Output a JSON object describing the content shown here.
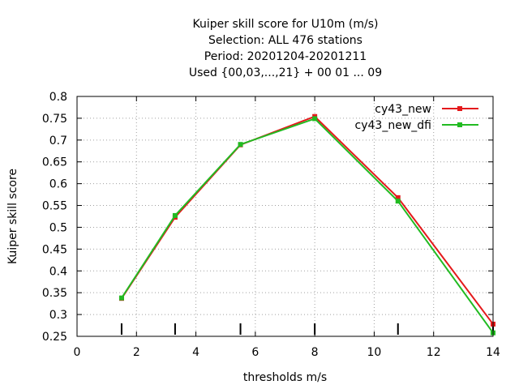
{
  "chart_data": {
    "type": "line",
    "title_lines": [
      "Kuiper skill score  for U10m (m/s)",
      "Selection: ALL    476 stations",
      "Period: 20201204-20201211",
      "Used {00,03,...,21} + 00 01 ... 09"
    ],
    "xlabel": "thresholds m/s",
    "ylabel": "Kuiper skill score",
    "xlim": [
      0,
      14
    ],
    "ylim": [
      0.25,
      0.8
    ],
    "xticks": [
      0,
      2,
      4,
      6,
      8,
      10,
      12,
      14
    ],
    "yticks": [
      0.25,
      0.3,
      0.35,
      0.4,
      0.45,
      0.5,
      0.55,
      0.6,
      0.65,
      0.7,
      0.75,
      0.8
    ],
    "grid": true,
    "legend_position": "top-right",
    "threshold_markers": [
      1.5,
      3.3,
      5.5,
      8.0,
      10.8,
      14.0
    ],
    "series": [
      {
        "name": "cy43_new",
        "color": "#e41a1c",
        "x": [
          1.5,
          3.3,
          5.5,
          8.0,
          10.8,
          14.0
        ],
        "y": [
          0.337,
          0.523,
          0.689,
          0.754,
          0.568,
          0.278
        ]
      },
      {
        "name": "cy43_new_dfi",
        "color": "#22bb22",
        "x": [
          1.5,
          3.3,
          5.5,
          8.0,
          10.8,
          14.0
        ],
        "y": [
          0.338,
          0.527,
          0.69,
          0.749,
          0.56,
          0.258
        ]
      }
    ]
  }
}
